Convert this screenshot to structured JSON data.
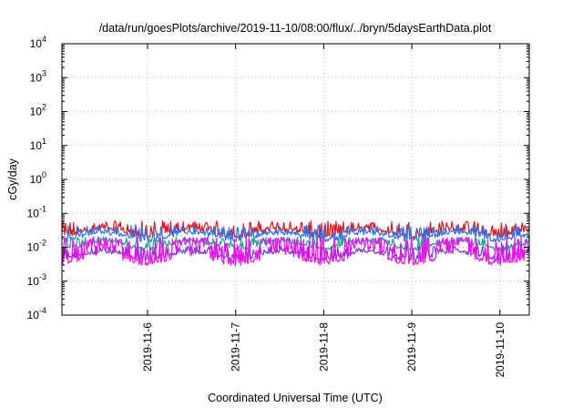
{
  "chart_data": {
    "type": "line",
    "title": "/data/run/goesPlots/archive/2019-11-10/08:00/flux/../bryn/5daysEarthData.plot",
    "xlabel": "Coordinated Universal Time (UTC)",
    "ylabel": "cGy/day",
    "yscale": "log",
    "ylim": [
      0.0001,
      10000
    ],
    "y_ticks": [
      {
        "base": "10",
        "exp": "-4",
        "value": 0.0001
      },
      {
        "base": "10",
        "exp": "-3",
        "value": 0.001
      },
      {
        "base": "10",
        "exp": "-2",
        "value": 0.01
      },
      {
        "base": "10",
        "exp": "-1",
        "value": 0.1
      },
      {
        "base": "10",
        "exp": "0",
        "value": 1
      },
      {
        "base": "10",
        "exp": "1",
        "value": 10
      },
      {
        "base": "10",
        "exp": "2",
        "value": 100
      },
      {
        "base": "10",
        "exp": "3",
        "value": 1000
      },
      {
        "base": "10",
        "exp": "4",
        "value": 10000
      }
    ],
    "xlim": [
      "2019-11-05T00:40",
      "2019-11-10T08:00"
    ],
    "x_ticks": [
      "2019-11-6",
      "2019-11-7",
      "2019-11-8",
      "2019-11-9",
      "2019-11-10"
    ],
    "x_tick_dates": [
      "2019-11-06T00:00",
      "2019-11-07T00:00",
      "2019-11-08T00:00",
      "2019-11-09T00:00",
      "2019-11-10T00:00"
    ],
    "grid": true,
    "legend": "none",
    "series": [
      {
        "color": "#e8151d",
        "baseline": 0.028,
        "peak": 0.06
      },
      {
        "color": "#2c6fe8",
        "baseline": 0.022,
        "peak": 0.045
      },
      {
        "color": "#18a88a",
        "baseline": 0.012,
        "peak": 0.02
      },
      {
        "color": "#7a3fd0",
        "baseline": 0.006,
        "peak": 0.011
      },
      {
        "color": "#f40af0",
        "baseline": 0.0045,
        "peak": 0.02
      }
    ]
  }
}
